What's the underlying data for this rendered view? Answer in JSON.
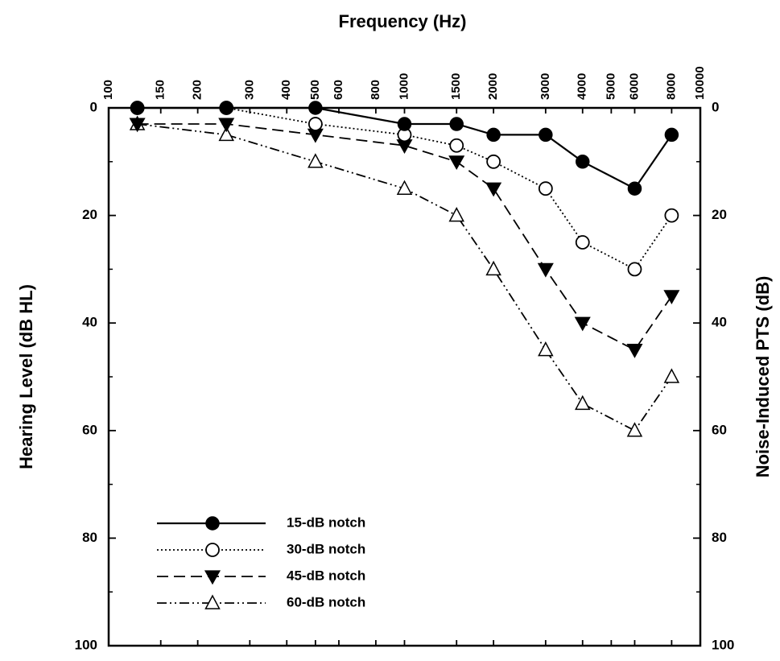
{
  "chart_data": {
    "type": "line",
    "title": "",
    "xlabel": "Frequency (Hz)",
    "ylabel": "Hearing Level (dB HL)",
    "ylabel_right": "Noise-Induced PTS (dB)",
    "x_scale": "log",
    "xlim": [
      100,
      10000
    ],
    "ylim": [
      0,
      100
    ],
    "y_inverted": true,
    "x_ticks": [
      100,
      150,
      200,
      300,
      400,
      500,
      600,
      800,
      1000,
      1500,
      2000,
      3000,
      4000,
      5000,
      6000,
      8000,
      10000
    ],
    "x_tick_labels": [
      "100",
      "150",
      "200",
      "300",
      "400",
      "500",
      "600",
      "800",
      "1000",
      "1500",
      "2000",
      "3000",
      "4000",
      "5000",
      "6000",
      "8000",
      "10000"
    ],
    "y_ticks": [
      0,
      20,
      40,
      60,
      80,
      100
    ],
    "y_tick_labels": [
      "0",
      "20",
      "40",
      "60",
      "80",
      "100"
    ],
    "y_minor_ticks": [
      10,
      30,
      50,
      70,
      90
    ],
    "grid": false,
    "legend_position": "bottom-left",
    "series": [
      {
        "name": "15-dB notch",
        "marker": "filled-circle",
        "line_style": "solid",
        "x": [
          125,
          250,
          500,
          1000,
          1500,
          2000,
          3000,
          4000,
          6000,
          8000
        ],
        "y": [
          0,
          0,
          0,
          3,
          3,
          5,
          5,
          10,
          15,
          5
        ]
      },
      {
        "name": "30-dB notch",
        "marker": "open-circle",
        "line_style": "dotted",
        "x": [
          125,
          250,
          500,
          1000,
          1500,
          2000,
          3000,
          4000,
          6000,
          8000
        ],
        "y": [
          0,
          0,
          3,
          5,
          7,
          10,
          15,
          25,
          30,
          20
        ]
      },
      {
        "name": "45-dB notch",
        "marker": "filled-triangle-down",
        "line_style": "dashed",
        "x": [
          125,
          250,
          500,
          1000,
          1500,
          2000,
          3000,
          4000,
          6000,
          8000
        ],
        "y": [
          3,
          3,
          5,
          7,
          10,
          15,
          30,
          40,
          45,
          35
        ]
      },
      {
        "name": "60-dB notch",
        "marker": "open-triangle-up",
        "line_style": "dash-dot-dot",
        "x": [
          125,
          250,
          500,
          1000,
          1500,
          2000,
          3000,
          4000,
          6000,
          8000
        ],
        "y": [
          3,
          5,
          10,
          15,
          20,
          30,
          45,
          55,
          60,
          50
        ]
      }
    ]
  }
}
